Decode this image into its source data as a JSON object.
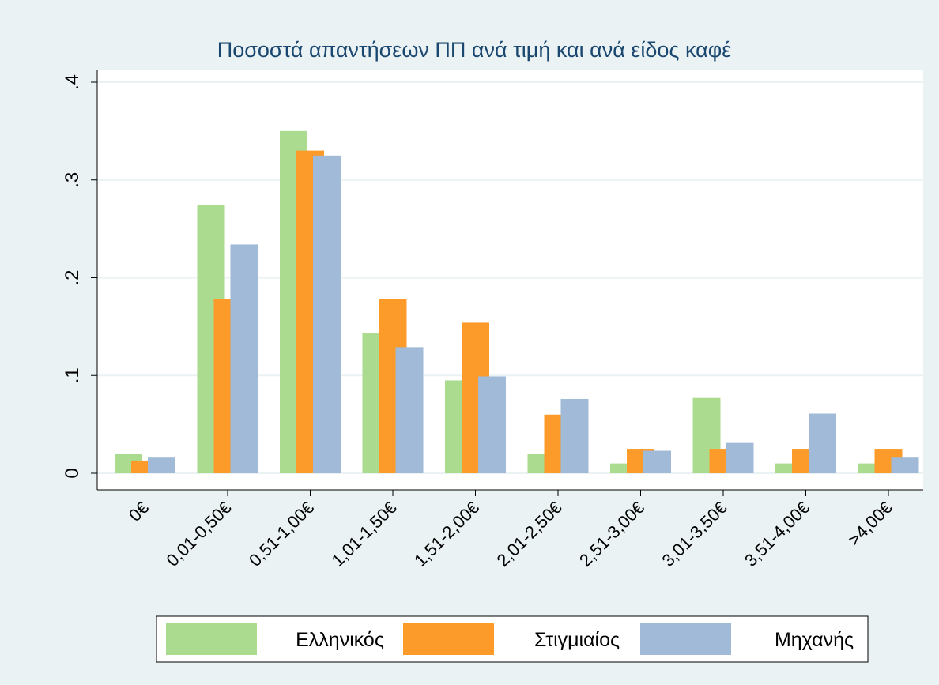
{
  "chart_data": {
    "type": "bar",
    "title": "Ποσοστά απαντήσεων ΠΠ ανά τιμή και ανά είδος καφέ",
    "categories": [
      "0€",
      "0,01-0,50€",
      "0,51-1,00€",
      "1,01-1,50€",
      "1,51-2,00€",
      "2,01-2,50€",
      "2,51-3,00€",
      "3,01-3,50€",
      "3,51-4,00€",
      ">4,00€"
    ],
    "series": [
      {
        "name": "Ελληνικός",
        "color": "#aadb8e",
        "values": [
          0.02,
          0.274,
          0.35,
          0.143,
          0.095,
          0.02,
          0.01,
          0.077,
          0.01,
          0.01
        ]
      },
      {
        "name": "Στιγμιαίος",
        "color": "#fc9a2a",
        "values": [
          0.013,
          0.178,
          0.33,
          0.178,
          0.154,
          0.06,
          0.025,
          0.025,
          0.025,
          0.025
        ]
      },
      {
        "name": "Μηχανής",
        "color": "#a0bad7",
        "values": [
          0.016,
          0.234,
          0.325,
          0.129,
          0.099,
          0.076,
          0.023,
          0.031,
          0.061,
          0.016
        ]
      }
    ],
    "ylim": [
      0,
      0.4
    ],
    "yticks": [
      0,
      {
        "value": 0.1,
        "label": ".1"
      },
      {
        "value": 0.2,
        "label": ".2"
      },
      {
        "value": 0.3,
        "label": ".3"
      },
      {
        "value": 0.4,
        "label": ".4"
      }
    ],
    "grid": true,
    "legend": "bottom"
  }
}
